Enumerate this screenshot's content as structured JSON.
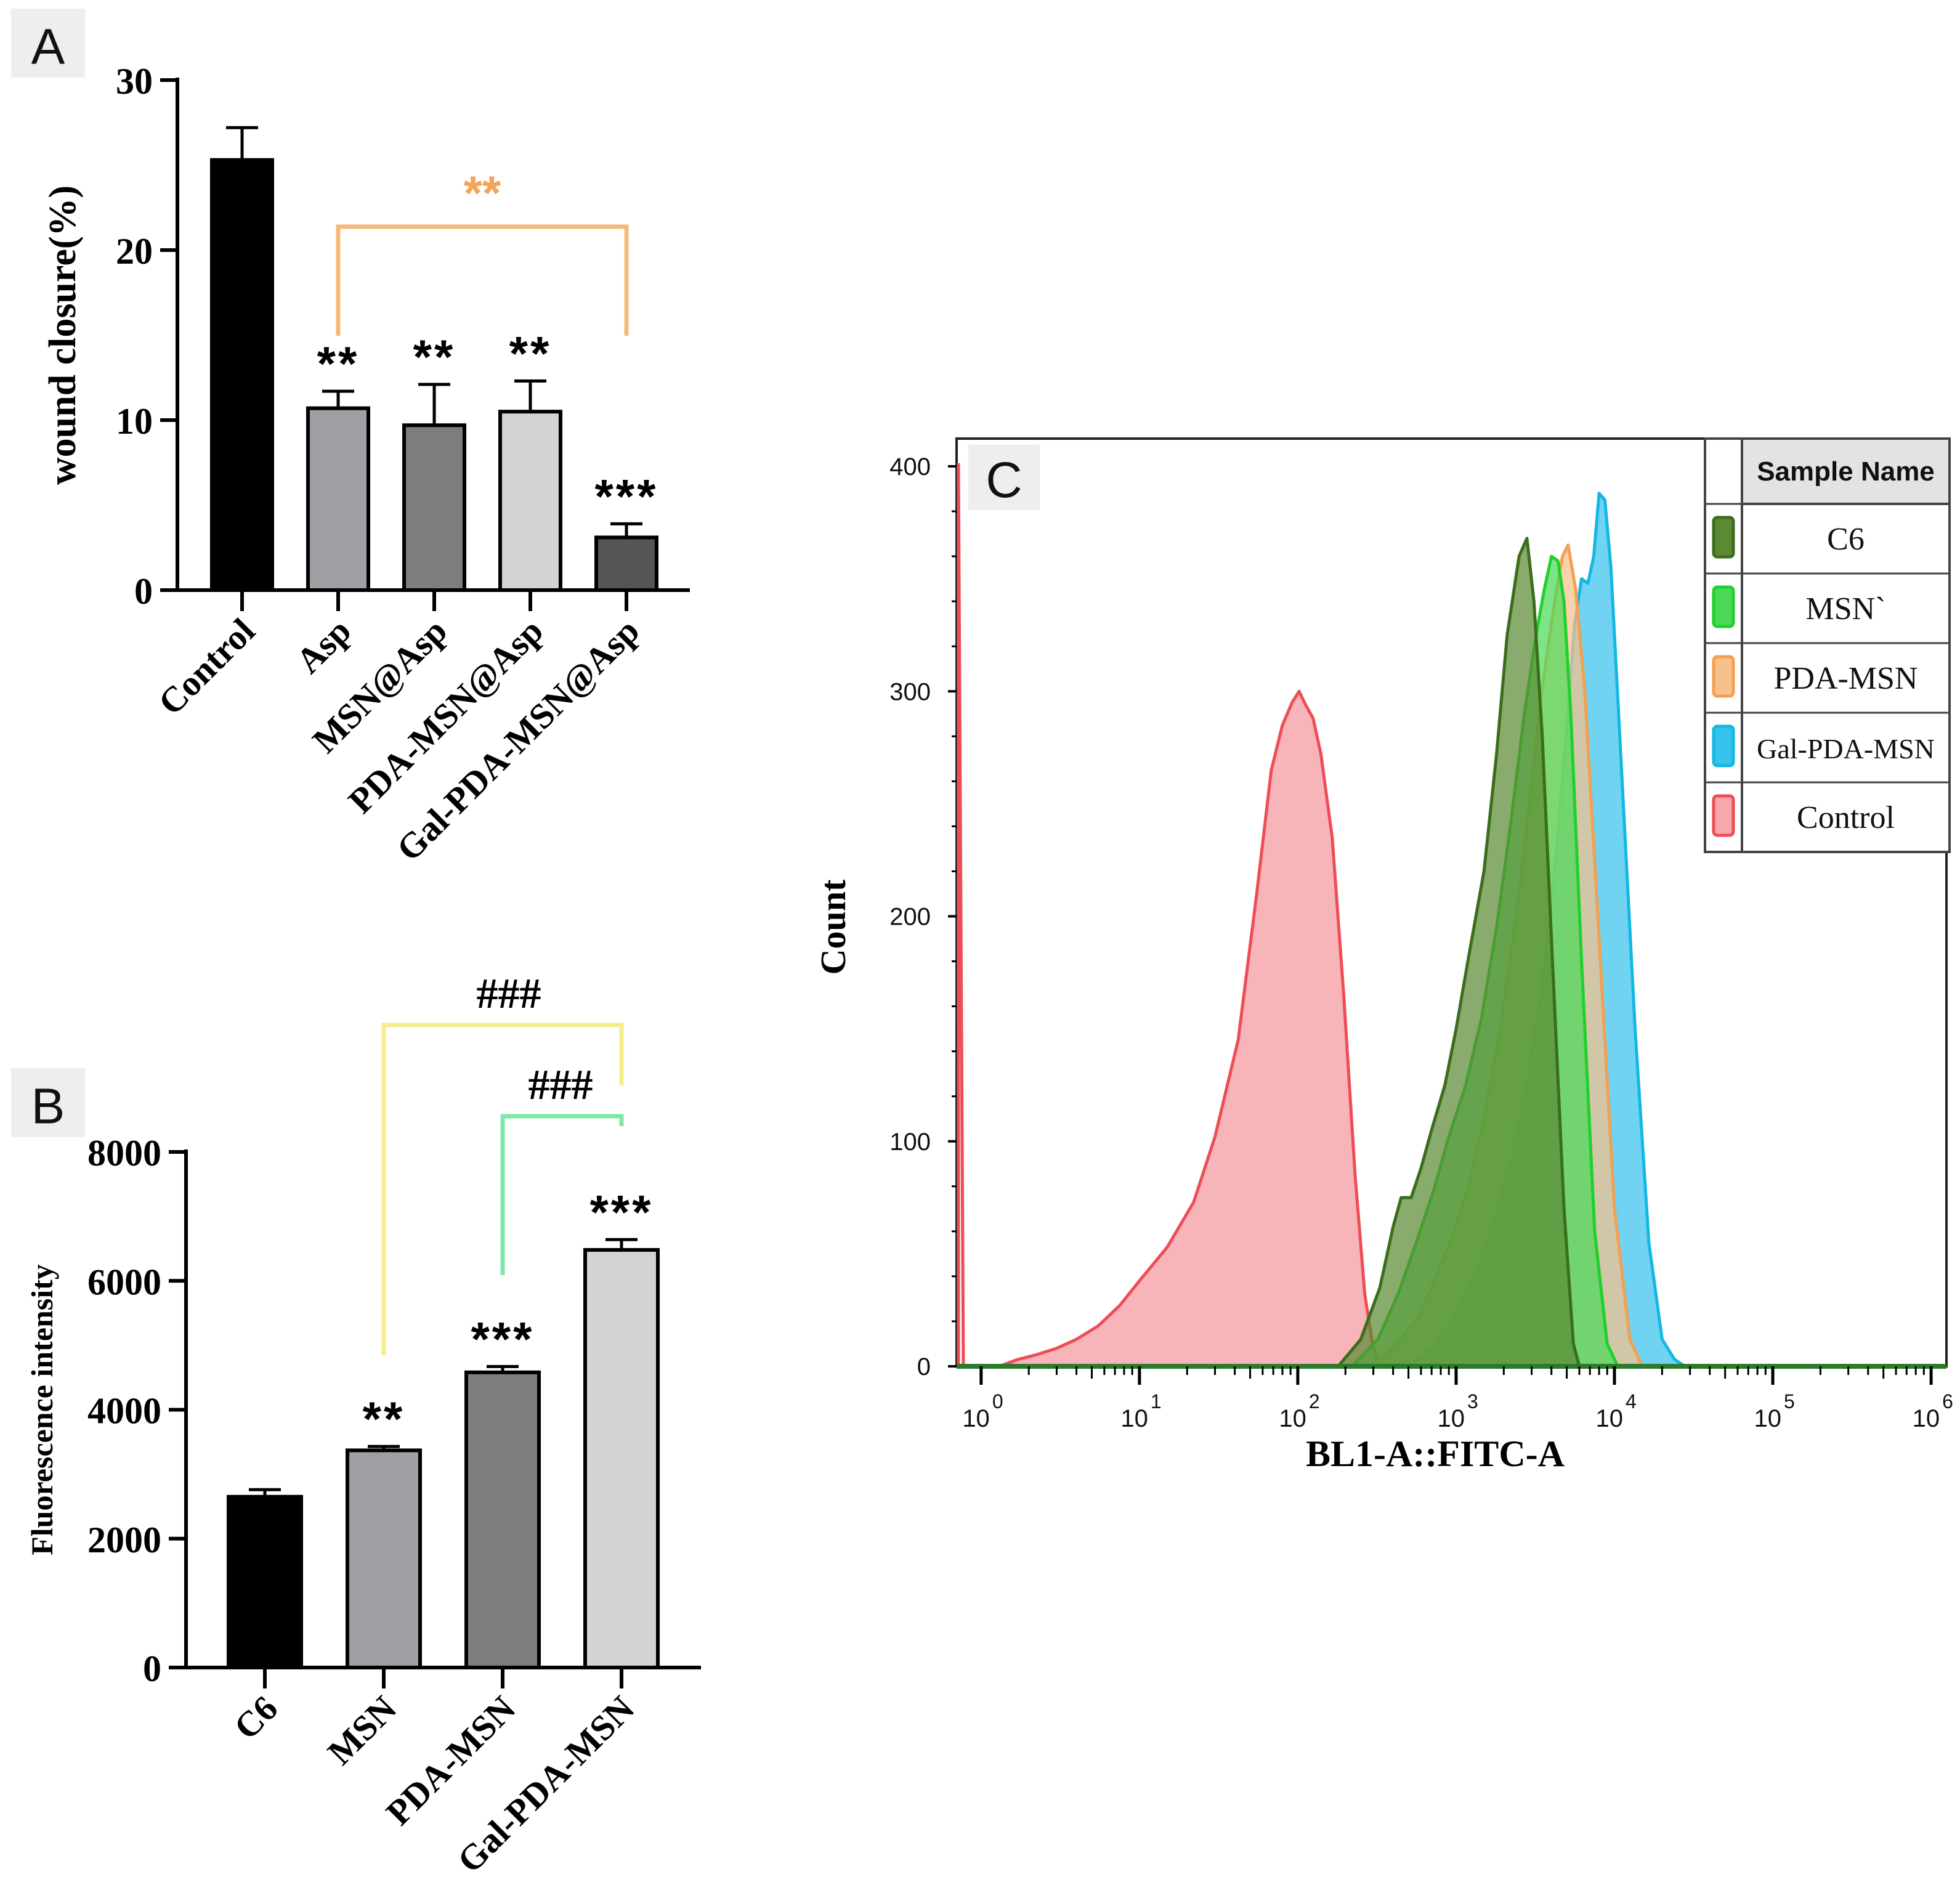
{
  "chart_data": [
    {
      "panel": "A",
      "type": "bar",
      "ylabel": "wound closure(%)",
      "ylim": [
        0,
        30
      ],
      "yticks": [
        0,
        10,
        20,
        30
      ],
      "categories": [
        "Control",
        "Asp",
        "MSN@Asp",
        "PDA-MSN@Asp",
        "Gal-PDA-MSN@Asp"
      ],
      "values": [
        25.3,
        10.7,
        9.7,
        10.5,
        3.1
      ],
      "errors": [
        1.9,
        1.0,
        2.4,
        1.8,
        0.8
      ],
      "bar_colors": [
        "#000000",
        "#9e9ea3",
        "#7d7d7d",
        "#d3d3d3",
        "#555555"
      ],
      "significance": [
        "",
        "**",
        "**",
        "**",
        "***"
      ],
      "comparisons": [
        {
          "from": "Asp",
          "to": "Gal-PDA-MSN@Asp",
          "label": "**",
          "color": "#f5b97a"
        }
      ]
    },
    {
      "panel": "B",
      "type": "bar",
      "ylabel": "Fluorescence intensity",
      "ylim": [
        0,
        8000
      ],
      "yticks": [
        0,
        2000,
        4000,
        6000,
        8000
      ],
      "categories": [
        "C6",
        "MSN",
        "PDA-MSN",
        "Gal-PDA-MSN"
      ],
      "values": [
        2650,
        3370,
        4580,
        6480
      ],
      "errors": [
        110,
        60,
        90,
        160
      ],
      "bar_colors": [
        "#000000",
        "#9e9ea3",
        "#7d7d7d",
        "#d3d3d3"
      ],
      "significance": [
        "",
        "**",
        "***",
        "***"
      ],
      "comparisons": [
        {
          "from": "MSN",
          "to": "Gal-PDA-MSN",
          "label": "###",
          "color": "#f5ed8a"
        },
        {
          "from": "PDA-MSN",
          "to": "Gal-PDA-MSN",
          "label": "###",
          "color": "#7ee8a8"
        }
      ]
    },
    {
      "panel": "C",
      "type": "area",
      "xlabel": "BL1-A::FITC-A",
      "ylabel": "Count",
      "xscale": "log",
      "xlim": [
        0.7,
        1250000
      ],
      "ylim": [
        0,
        400
      ],
      "yticks": [
        0,
        100,
        200,
        300,
        400
      ],
      "xticks": [
        {
          "value": 1,
          "base": "10",
          "exp": "0"
        },
        {
          "value": 10,
          "base": "10",
          "exp": "1"
        },
        {
          "value": 100,
          "base": "10",
          "exp": "2"
        },
        {
          "value": 1000,
          "base": "10",
          "exp": "3"
        },
        {
          "value": 10000,
          "base": "10",
          "exp": "4"
        },
        {
          "value": 100000,
          "base": "10",
          "exp": "5"
        },
        {
          "value": 1000000,
          "base": "10",
          "exp": "6"
        }
      ],
      "legend_title": "Sample Name",
      "legend_position": "top-right",
      "series": [
        {
          "name": "Control",
          "color": "#ee4d55",
          "fill": "#f7a8ad",
          "x": [
            1.3,
            1.7,
            2.2,
            3,
            4,
            5.5,
            7.5,
            10,
            15,
            22,
            30,
            42,
            55,
            68,
            80,
            92,
            102,
            112,
            125,
            140,
            165,
            195,
            230,
            265,
            300,
            340
          ],
          "y": [
            0,
            3,
            5,
            8,
            12,
            18,
            27,
            38,
            53,
            73,
            102,
            145,
            210,
            265,
            285,
            295,
            300,
            294,
            288,
            272,
            235,
            165,
            85,
            32,
            8,
            0
          ]
        },
        {
          "name": "C6",
          "color": "#3a6e1c",
          "fill": "#5c8a34",
          "x": [
            180,
            250,
            330,
            400,
            450,
            520,
            600,
            700,
            850,
            1000,
            1200,
            1500,
            1800,
            2100,
            2500,
            2800,
            3100,
            3500,
            4000,
            4800,
            5500,
            6000
          ],
          "y": [
            0,
            12,
            35,
            62,
            75,
            75,
            88,
            105,
            125,
            150,
            182,
            220,
            272,
            325,
            360,
            368,
            340,
            280,
            190,
            70,
            10,
            0
          ]
        },
        {
          "name": "MSN`",
          "color": "#1fd12a",
          "fill": "#4cd95a",
          "x": [
            220,
            320,
            430,
            560,
            720,
            900,
            1150,
            1450,
            1800,
            2200,
            2700,
            3200,
            3600,
            4000,
            4400,
            4800,
            5300,
            6200,
            7500,
            9000,
            10500
          ],
          "y": [
            0,
            12,
            32,
            55,
            78,
            102,
            125,
            155,
            195,
            240,
            290,
            325,
            345,
            360,
            358,
            340,
            290,
            180,
            60,
            10,
            0
          ]
        },
        {
          "name": "PDA-MSN",
          "color": "#f2a053",
          "fill": "#f6c18a",
          "x": [
            300,
            420,
            580,
            750,
            950,
            1200,
            1500,
            1900,
            2400,
            2900,
            3400,
            3900,
            4300,
            4700,
            5100,
            5700,
            6500,
            8000,
            10000,
            12500,
            15000
          ],
          "y": [
            0,
            10,
            22,
            40,
            58,
            80,
            110,
            150,
            200,
            250,
            295,
            325,
            345,
            360,
            365,
            345,
            300,
            190,
            70,
            12,
            0
          ]
        },
        {
          "name": "Gal-PDA-MSN",
          "color": "#13b7e3",
          "fill": "#37c2ec",
          "x": [
            500,
            700,
            950,
            1300,
            1700,
            2200,
            2800,
            3500,
            4300,
            5000,
            5600,
            6200,
            6800,
            7400,
            8000,
            8700,
            9500,
            11000,
            13500,
            16500,
            20000,
            24000,
            28000
          ],
          "y": [
            0,
            8,
            20,
            40,
            62,
            90,
            125,
            170,
            228,
            285,
            330,
            350,
            348,
            360,
            388,
            385,
            355,
            270,
            150,
            55,
            12,
            3,
            0
          ]
        }
      ],
      "legend_order": [
        "C6",
        "MSN`",
        "PDA-MSN",
        "Gal-PDA-MSN",
        "Control"
      ]
    }
  ]
}
